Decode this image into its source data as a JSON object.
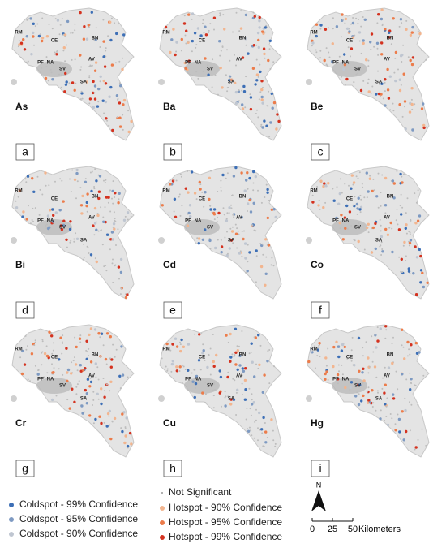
{
  "panels": [
    {
      "element": "As",
      "letter": "a"
    },
    {
      "element": "Ba",
      "letter": "b"
    },
    {
      "element": "Be",
      "letter": "c"
    },
    {
      "element": "Bi",
      "letter": "d"
    },
    {
      "element": "Cd",
      "letter": "e"
    },
    {
      "element": "Co",
      "letter": "f"
    },
    {
      "element": "Cr",
      "letter": "g"
    },
    {
      "element": "Cu",
      "letter": "h"
    },
    {
      "element": "Hg",
      "letter": "i"
    }
  ],
  "places": [
    "RM",
    "CE",
    "BN",
    "PF",
    "NA",
    "SV",
    "AV",
    "SA"
  ],
  "legend": {
    "coldspots": [
      {
        "label": "Coldspot - 99% Confidence",
        "color": "#3d6fb6"
      },
      {
        "label": "Coldspot - 95% Confidence",
        "color": "#7e9ac2"
      },
      {
        "label": "Coldspot - 90% Confidence",
        "color": "#bfc6d1"
      }
    ],
    "neutral": {
      "label": "Not Significant",
      "color": "#9a9a9a"
    },
    "hotspots": [
      {
        "label": "Hotspot - 90% Confidence",
        "color": "#f2b58f"
      },
      {
        "label": "Hotspot - 95% Confidence",
        "color": "#ec7c4b"
      },
      {
        "label": "Hotspot - 99% Confidence",
        "color": "#d4321f"
      }
    ]
  },
  "scale": {
    "north": "N",
    "ticks": [
      0,
      25,
      50
    ],
    "unit": "Kilometers"
  }
}
